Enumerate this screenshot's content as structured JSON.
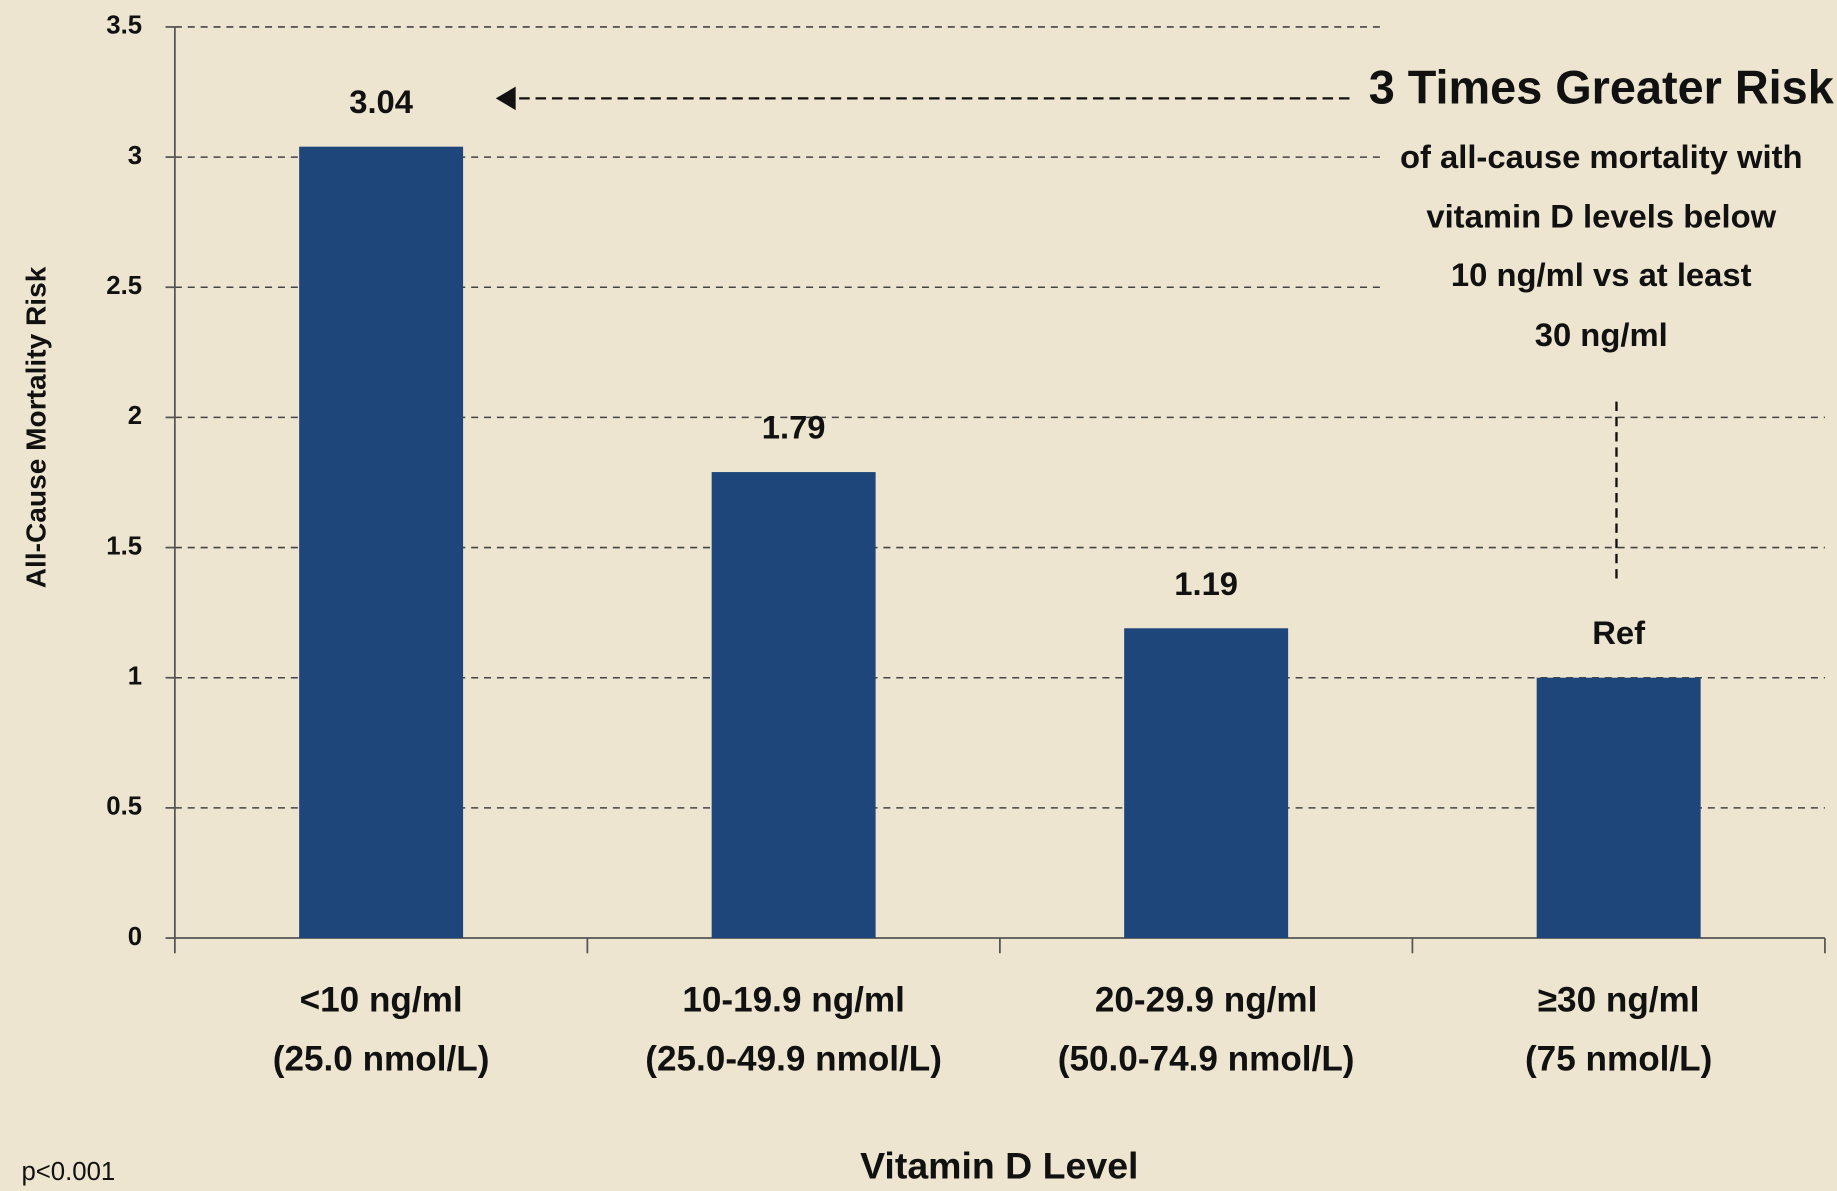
{
  "chart_data": {
    "type": "bar",
    "categories": [
      [
        "<10 ng/ml",
        "(25.0 nmol/L)"
      ],
      [
        "10-19.9 ng/ml",
        "(25.0-49.9 nmol/L)"
      ],
      [
        "20-29.9 ng/ml",
        "(50.0-74.9 nmol/L)"
      ],
      [
        "≥30 ng/ml",
        "(75 nmol/L)"
      ]
    ],
    "values": [
      3.04,
      1.79,
      1.19,
      1
    ],
    "value_labels": [
      "3.04",
      "1.79",
      "1.19",
      "Ref"
    ],
    "color": "#1f467b",
    "ylim": [
      0,
      3.5
    ],
    "yticks": [
      0,
      0.5,
      1,
      1.5,
      2,
      2.5,
      3,
      3.5
    ],
    "grid": true,
    "y_label": "All-Cause Mortality Risk",
    "x_label": "Vitamin D Level",
    "annotation": {
      "title": "3 Times Greater Risk",
      "lines": [
        "of all-cause mortality with",
        "vitamin D levels below",
        "10 ng/ml vs at least",
        "30 ng/ml"
      ]
    },
    "footnote": "p<0.001"
  }
}
